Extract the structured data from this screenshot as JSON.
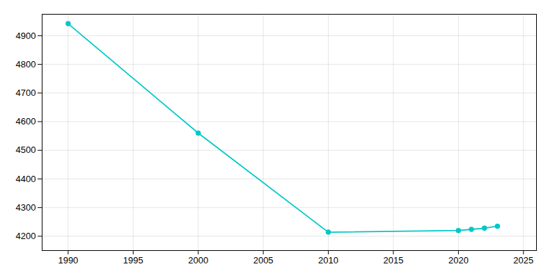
{
  "chart_data": {
    "type": "line",
    "x": [
      1990,
      2000,
      2010,
      2020,
      2021,
      2022,
      2023
    ],
    "values": [
      4942,
      4560,
      4214,
      4220,
      4224,
      4228,
      4235
    ],
    "color": "#00C8C8",
    "marker": "circle",
    "xlim": [
      1988,
      2026
    ],
    "xticks": [
      1990,
      1995,
      2000,
      2005,
      2010,
      2015,
      2020,
      2025
    ],
    "ylim": [
      4150,
      4975
    ],
    "yticks": [
      4200,
      4300,
      4400,
      4500,
      4600,
      4700,
      4800,
      4900
    ],
    "grid": true
  }
}
